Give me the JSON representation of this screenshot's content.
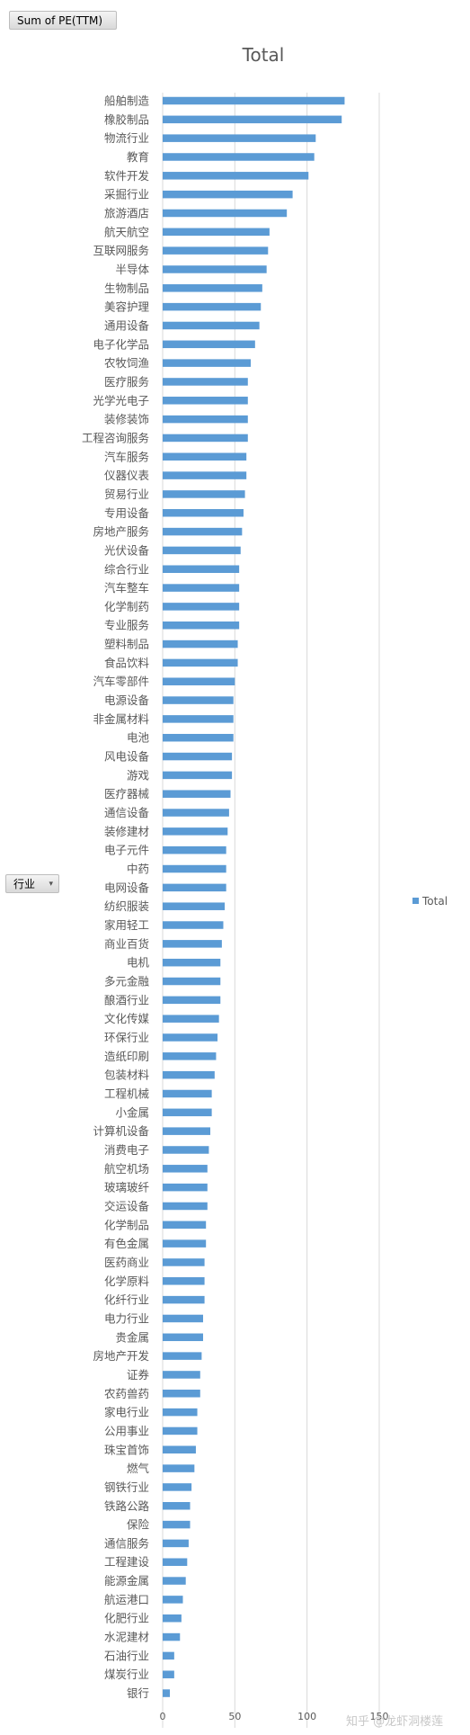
{
  "pivot": {
    "value_field": "Sum of PE(TTM)",
    "row_field": "行业"
  },
  "watermark": "知乎 @龙虾洞楼莲",
  "chart_data": {
    "type": "bar",
    "orientation": "horizontal",
    "title": "Total",
    "legend_position": "right",
    "grid": true,
    "xlim": [
      0,
      150
    ],
    "xticks": [
      0,
      50,
      100,
      150
    ],
    "bar_color": "#5b9bd5",
    "series": [
      {
        "name": "Total"
      }
    ],
    "categories": [
      "船舶制造",
      "橡胶制品",
      "物流行业",
      "教育",
      "软件开发",
      "采掘行业",
      "旅游酒店",
      "航天航空",
      "互联网服务",
      "半导体",
      "生物制品",
      "美容护理",
      "通用设备",
      "电子化学品",
      "农牧饲渔",
      "医疗服务",
      "光学光电子",
      "装修装饰",
      "工程咨询服务",
      "汽车服务",
      "仪器仪表",
      "贸易行业",
      "专用设备",
      "房地产服务",
      "光伏设备",
      "综合行业",
      "汽车整车",
      "化学制药",
      "专业服务",
      "塑料制品",
      "食品饮料",
      "汽车零部件",
      "电源设备",
      "非金属材料",
      "电池",
      "风电设备",
      "游戏",
      "医疗器械",
      "通信设备",
      "装修建材",
      "电子元件",
      "中药",
      "电网设备",
      "纺织服装",
      "家用轻工",
      "商业百货",
      "电机",
      "多元金融",
      "酿酒行业",
      "文化传媒",
      "环保行业",
      "造纸印刷",
      "包装材料",
      "工程机械",
      "小金属",
      "计算机设备",
      "消费电子",
      "航空机场",
      "玻璃玻纤",
      "交运设备",
      "化学制品",
      "有色金属",
      "医药商业",
      "化学原料",
      "化纤行业",
      "电力行业",
      "贵金属",
      "房地产开发",
      "证券",
      "农药兽药",
      "家电行业",
      "公用事业",
      "珠宝首饰",
      "燃气",
      "钢铁行业",
      "铁路公路",
      "保险",
      "通信服务",
      "工程建设",
      "能源金属",
      "航运港口",
      "化肥行业",
      "水泥建材",
      "石油行业",
      "煤炭行业",
      "银行"
    ],
    "values": [
      126,
      124,
      106,
      105,
      101,
      90,
      86,
      74,
      73,
      72,
      69,
      68,
      67,
      64,
      61,
      59,
      59,
      59,
      59,
      58,
      58,
      57,
      56,
      55,
      54,
      53,
      53,
      53,
      53,
      52,
      52,
      50,
      49,
      49,
      49,
      48,
      48,
      47,
      46,
      45,
      44,
      44,
      44,
      43,
      42,
      41,
      40,
      40,
      40,
      39,
      38,
      37,
      36,
      34,
      34,
      33,
      32,
      31,
      31,
      31,
      30,
      30,
      29,
      29,
      29,
      28,
      28,
      27,
      26,
      26,
      24,
      24,
      23,
      22,
      20,
      19,
      19,
      18,
      17,
      16,
      14,
      13,
      12,
      8,
      8,
      5
    ]
  }
}
